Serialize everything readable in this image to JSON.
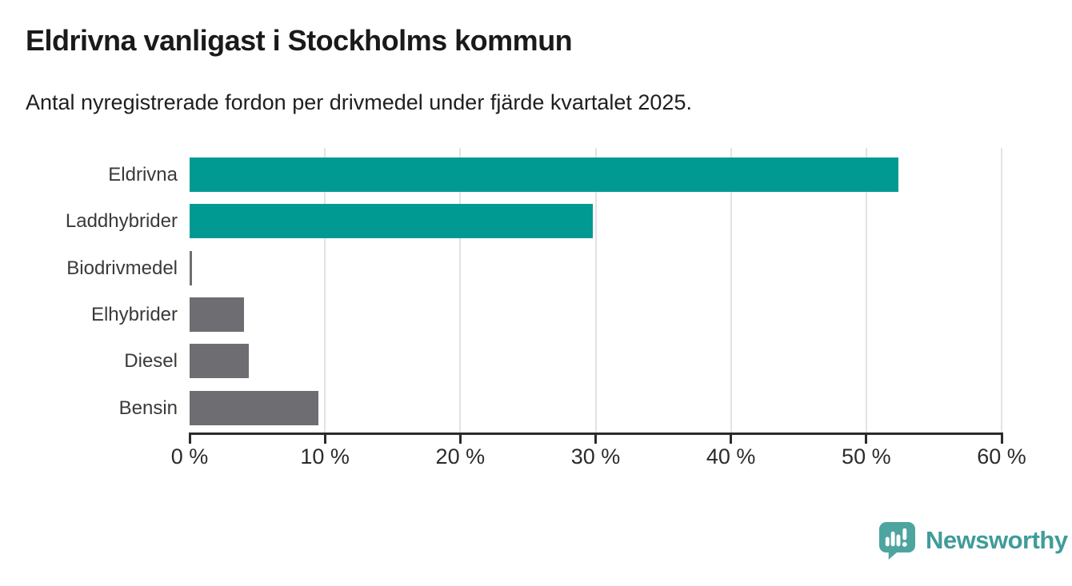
{
  "header": {
    "title": "Eldrivna vanligast i Stockholms kommun",
    "subtitle": "Antal nyregistrerade fordon per drivmedel under fjärde kvartalet 2025."
  },
  "chart_data": {
    "type": "bar",
    "orientation": "horizontal",
    "title": "Eldrivna vanligast i Stockholms kommun",
    "subtitle": "Antal nyregistrerade fordon per drivmedel under fjärde kvartalet 2025.",
    "categories": [
      "Eldrivna",
      "Laddhybrider",
      "Biodrivmedel",
      "Elhybrider",
      "Diesel",
      "Bensin"
    ],
    "values": [
      52.4,
      29.8,
      0.15,
      4.0,
      4.4,
      9.5
    ],
    "unit": "%",
    "bar_colors": [
      "#009a93",
      "#009a93",
      "#6d6d72",
      "#6d6d72",
      "#6d6d72",
      "#6d6d72"
    ],
    "xlim": [
      0,
      60
    ],
    "x_ticks": [
      0,
      10,
      20,
      30,
      40,
      50,
      60
    ],
    "x_tick_labels": [
      "0 %",
      "10 %",
      "20 %",
      "30 %",
      "40 %",
      "50 %",
      "60 %"
    ],
    "grid": "vertical-gridlines",
    "legend": "none",
    "accent_color": "#009a93",
    "neutral_color": "#6d6d72",
    "grid_color": "#e3e3e3",
    "axis_color": "#2b2b2b"
  },
  "footer": {
    "brand": "Newsworthy",
    "brand_color": "#3f9c9a",
    "logo_icon": "newsworthy-speech-bubble-bar-chart-icon"
  }
}
